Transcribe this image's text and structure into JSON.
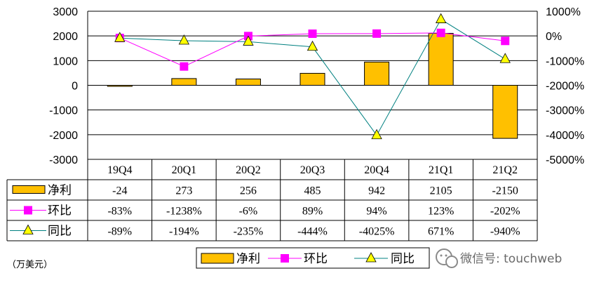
{
  "chart_data": {
    "type": "bar",
    "categories": [
      "19Q4",
      "20Q1",
      "20Q2",
      "20Q3",
      "20Q4",
      "21Q1",
      "21Q2"
    ],
    "series": [
      {
        "name": "净利",
        "type": "bar",
        "axis": "left",
        "values": [
          -24,
          273,
          256,
          485,
          942,
          2105,
          -2150
        ],
        "color": "#FFC000"
      },
      {
        "name": "环比",
        "type": "line",
        "axis": "right",
        "values": [
          -83,
          -1238,
          -6,
          89,
          94,
          123,
          -202
        ],
        "color": "#FF00FF"
      },
      {
        "name": "同比",
        "type": "line",
        "axis": "right",
        "values": [
          -89,
          -194,
          -235,
          -444,
          -4025,
          671,
          -940
        ],
        "color": "#008080"
      }
    ],
    "table": [
      {
        "label": "净利",
        "cells": [
          "-24",
          "273",
          "256",
          "485",
          "942",
          "2105",
          "-2150"
        ]
      },
      {
        "label": "环比",
        "cells": [
          "-83%",
          "-1238%",
          "-6%",
          "89%",
          "94%",
          "123%",
          "-202%"
        ]
      },
      {
        "label": "同比",
        "cells": [
          "-89%",
          "-194%",
          "-235%",
          "-444%",
          "-4025%",
          "671%",
          "-940%"
        ]
      }
    ],
    "ylim_left": [
      -3000,
      3000
    ],
    "yticks_left": [
      "3000",
      "2000",
      "1000",
      "0",
      "-1000",
      "-2000",
      "-3000"
    ],
    "ylim_right": [
      -5000,
      1000
    ],
    "yticks_right": [
      "1000%",
      "0%",
      "-1000%",
      "-2000%",
      "-3000%",
      "-4000%",
      "-5000%"
    ],
    "grid": true,
    "legend_position": "bottom"
  },
  "unit_note": "（万美元）",
  "watermark": "微信号: touchweb",
  "colors": {
    "bar": "#FFC000",
    "mom": "#FF00FF",
    "yoy": "#008080",
    "yoy_marker": "#FFFF00"
  }
}
